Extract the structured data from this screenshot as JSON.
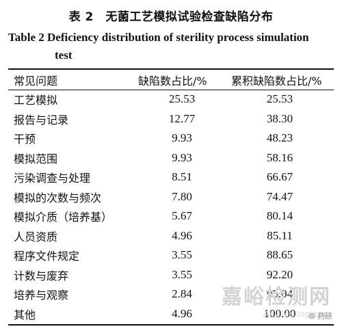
{
  "caption": {
    "cn": "表 2　无菌工艺模拟试验检查缺陷分布",
    "en_line1": "Table 2   Deficiency distribution of sterility process simulation",
    "en_line2": "test"
  },
  "table": {
    "headers": [
      "常见问题",
      "缺陷数占比/%",
      "累积缺陷数占比/%"
    ],
    "rows": [
      {
        "issue": "工艺模拟",
        "pct": "25.53",
        "cum": "25.53"
      },
      {
        "issue": "报告与记录",
        "pct": "12.77",
        "cum": "38.30"
      },
      {
        "issue": "干预",
        "pct": "9.93",
        "cum": "48.23"
      },
      {
        "issue": "模拟范围",
        "pct": "9.93",
        "cum": "58.16"
      },
      {
        "issue": "污染调查与处理",
        "pct": "8.51",
        "cum": "66.67"
      },
      {
        "issue": "模拟的次数与频次",
        "pct": "7.80",
        "cum": "74.47"
      },
      {
        "issue": "模拟介质（培养基）",
        "pct": "5.67",
        "cum": "80.14"
      },
      {
        "issue": "人员资质",
        "pct": "4.96",
        "cum": "85.11"
      },
      {
        "issue": "程序文件规定",
        "pct": "3.55",
        "cum": "88.65"
      },
      {
        "issue": "计数与废弃",
        "pct": "3.55",
        "cum": "92.20"
      },
      {
        "issue": "培养与观察",
        "pct": "2.84",
        "cum": "95.04"
      },
      {
        "issue": "其他",
        "pct": "4.96",
        "cum": "100.00"
      }
    ]
  },
  "watermark": {
    "title": "嘉峪检测网",
    "url": "AnyTesting.com",
    "badge": "药研"
  }
}
